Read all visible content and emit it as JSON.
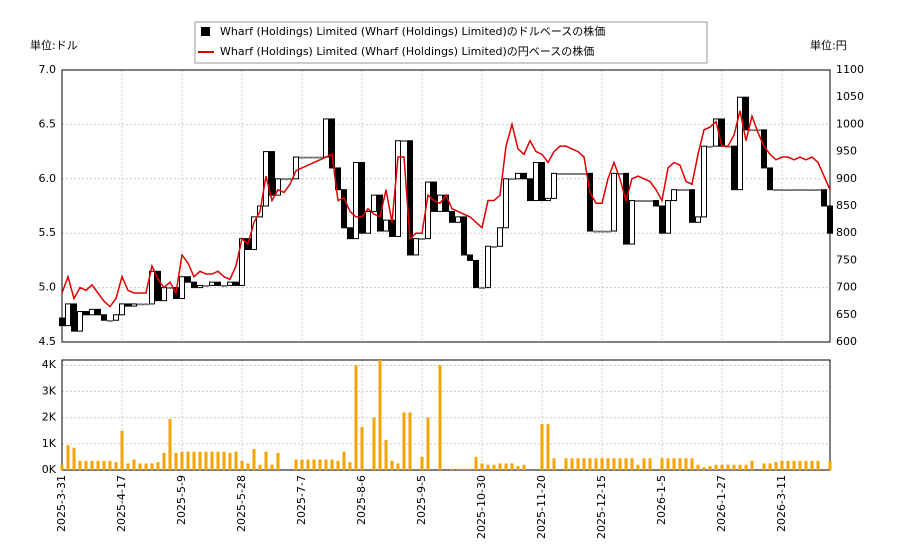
{
  "chart_data": [
    {
      "type": "candlestick",
      "unit_left": "単位:ドル",
      "unit_right": "単位:円",
      "series": [
        {
          "name": "Wharf (Holdings) Limited (Wharf (Holdings) Limited)のドルベースの株価",
          "color": "#000000",
          "open": [
            4.72,
            4.65,
            4.85,
            4.6,
            4.78,
            4.75,
            4.8,
            4.75,
            4.7,
            4.7,
            4.75,
            4.85,
            4.83,
            4.85,
            4.85,
            4.85,
            5.15,
            4.88,
            5.0,
            5.0,
            4.9,
            5.1,
            5.05,
            5.0,
            5.02,
            5.02,
            5.05,
            5.02,
            5.02,
            5.05,
            5.02,
            5.45,
            5.35,
            5.65,
            5.75,
            6.25,
            5.85,
            6.0,
            6.0,
            6.0,
            6.2,
            6.2,
            6.2,
            6.2,
            6.2,
            6.55,
            6.1,
            5.9,
            5.55,
            5.45,
            6.15,
            5.5,
            5.7,
            5.85,
            5.52,
            5.62,
            5.47,
            6.35,
            6.35,
            5.3,
            5.45,
            5.45,
            5.97,
            5.7,
            5.85,
            5.7,
            5.6,
            5.65,
            5.3,
            5.25,
            5.0,
            5.0,
            5.38,
            5.38,
            5.55,
            6.0,
            6.0,
            6.05,
            6.0,
            5.8,
            6.15,
            5.8,
            5.82,
            6.05,
            6.05,
            6.05,
            6.05,
            6.05,
            6.05,
            5.52,
            5.52,
            5.52,
            5.52,
            6.05,
            6.05,
            5.4,
            5.8,
            5.8,
            5.8,
            5.8,
            5.75,
            5.5,
            5.8,
            5.9,
            5.9,
            5.9,
            5.6,
            5.65,
            6.3,
            6.3,
            6.55,
            6.3,
            6.3,
            5.9,
            6.75,
            6.45,
            6.45,
            6.45,
            6.1,
            5.9,
            5.9,
            5.9,
            5.9,
            5.9,
            5.9,
            5.9,
            5.9,
            5.9,
            5.75
          ],
          "close": [
            4.65,
            4.85,
            4.6,
            4.78,
            4.75,
            4.8,
            4.75,
            4.7,
            4.7,
            4.75,
            4.85,
            4.83,
            4.85,
            4.85,
            4.85,
            5.15,
            4.88,
            5.0,
            5.0,
            4.9,
            5.1,
            5.05,
            5.0,
            5.02,
            5.02,
            5.05,
            5.02,
            5.02,
            5.05,
            5.02,
            5.45,
            5.35,
            5.65,
            5.75,
            6.25,
            5.85,
            6.0,
            6.0,
            6.0,
            6.2,
            6.2,
            6.2,
            6.2,
            6.2,
            6.55,
            6.1,
            5.9,
            5.55,
            5.45,
            6.15,
            5.5,
            5.7,
            5.85,
            5.52,
            5.62,
            5.47,
            6.35,
            6.35,
            5.3,
            5.45,
            5.45,
            5.97,
            5.7,
            5.85,
            5.7,
            5.6,
            5.65,
            5.3,
            5.25,
            5.0,
            5.0,
            5.38,
            5.38,
            5.55,
            6.0,
            6.0,
            6.05,
            6.0,
            5.8,
            6.15,
            5.8,
            5.82,
            6.05,
            6.05,
            6.05,
            6.05,
            6.05,
            6.05,
            5.52,
            5.52,
            5.52,
            5.52,
            6.05,
            6.05,
            5.4,
            5.8,
            5.8,
            5.8,
            5.8,
            5.75,
            5.5,
            5.8,
            5.9,
            5.9,
            5.9,
            5.6,
            5.65,
            6.3,
            6.3,
            6.55,
            6.3,
            6.3,
            5.9,
            6.75,
            6.45,
            6.45,
            6.45,
            6.1,
            5.9,
            5.9,
            5.9,
            5.9,
            5.9,
            5.9,
            5.9,
            5.9,
            5.9,
            5.75,
            5.5
          ]
        },
        {
          "name": "Wharf (Holdings) Limited (Wharf (Holdings) Limited)の円ベースの株価",
          "color": "#e00000",
          "axis": "y2",
          "values": [
            690,
            720,
            680,
            700,
            695,
            705,
            690,
            675,
            665,
            680,
            720,
            695,
            690,
            690,
            690,
            740,
            715,
            700,
            710,
            690,
            760,
            745,
            720,
            730,
            725,
            725,
            730,
            720,
            715,
            740,
            790,
            780,
            820,
            840,
            905,
            860,
            880,
            875,
            890,
            915,
            920,
            925,
            930,
            935,
            940,
            945,
            860,
            865,
            840,
            830,
            830,
            845,
            835,
            830,
            880,
            820,
            940,
            940,
            790,
            800,
            800,
            870,
            860,
            855,
            870,
            845,
            840,
            835,
            830,
            820,
            810,
            860,
            860,
            870,
            960,
            1000,
            955,
            945,
            970,
            950,
            945,
            930,
            950,
            960,
            960,
            955,
            950,
            940,
            875,
            855,
            855,
            900,
            930,
            900,
            860,
            900,
            905,
            900,
            895,
            880,
            860,
            920,
            930,
            925,
            895,
            890,
            945,
            990,
            995,
            1005,
            960,
            960,
            980,
            1025,
            970,
            1015,
            985,
            960,
            945,
            935,
            940,
            940,
            935,
            940,
            935,
            940,
            930,
            905,
            880
          ]
        }
      ],
      "ylim": [
        4.5,
        7.0
      ],
      "yticks": [
        4.5,
        {
          "value": 5.0,
          "label": "5.0"
        },
        5.5,
        {
          "value": 6.0,
          "label": "6.0"
        },
        6.5,
        {
          "value": 7.0,
          "label": "7.0"
        }
      ],
      "y2lim": [
        600,
        1100
      ],
      "y2ticks": [
        600,
        650,
        700,
        750,
        800,
        850,
        900,
        950,
        1000,
        1050,
        1100
      ],
      "grid": true
    },
    {
      "type": "bar",
      "categories": [
        "2025-3-31",
        null,
        null,
        null,
        null,
        null,
        null,
        null,
        null,
        null,
        "2025-4-17",
        null,
        null,
        null,
        null,
        null,
        null,
        null,
        null,
        null,
        "2025-5-9",
        null,
        null,
        null,
        null,
        null,
        null,
        null,
        null,
        null,
        "2025-5-28",
        null,
        null,
        null,
        null,
        null,
        null,
        null,
        null,
        null,
        "2025-7-7",
        null,
        null,
        null,
        null,
        null,
        null,
        null,
        null,
        null,
        "2025-8-6",
        null,
        null,
        null,
        null,
        null,
        null,
        null,
        null,
        null,
        "2025-9-5",
        null,
        null,
        null,
        null,
        null,
        null,
        null,
        null,
        null,
        "2025-10-30",
        null,
        null,
        null,
        null,
        null,
        null,
        null,
        null,
        null,
        "2025-11-20",
        null,
        null,
        null,
        null,
        null,
        null,
        null,
        null,
        null,
        "2025-12-15",
        null,
        null,
        null,
        null,
        null,
        null,
        null,
        null,
        null,
        "2026-1-5",
        null,
        null,
        null,
        null,
        null,
        null,
        null,
        null,
        null,
        "2026-1-27",
        null,
        null,
        null,
        null,
        null,
        null,
        null,
        null,
        null,
        "2026-3-11",
        null,
        null,
        null,
        null,
        null,
        null,
        null,
        null
      ],
      "values": [
        200,
        950,
        850,
        350,
        350,
        350,
        350,
        350,
        350,
        300,
        1500,
        250,
        400,
        250,
        250,
        250,
        300,
        650,
        1950,
        650,
        700,
        700,
        700,
        700,
        700,
        700,
        700,
        700,
        650,
        700,
        350,
        250,
        800,
        200,
        700,
        200,
        650,
        0,
        0,
        400,
        400,
        400,
        400,
        400,
        400,
        400,
        350,
        700,
        300,
        4000,
        1650,
        0,
        2000,
        4200,
        1150,
        350,
        250,
        2200,
        2200,
        0,
        500,
        2000,
        0,
        4000,
        0,
        50,
        50,
        50,
        50,
        500,
        250,
        200,
        200,
        250,
        250,
        250,
        150,
        200,
        0,
        0,
        1750,
        1750,
        450,
        0,
        450,
        450,
        450,
        450,
        450,
        450,
        450,
        450,
        450,
        450,
        450,
        450,
        200,
        450,
        450,
        0,
        450,
        450,
        450,
        450,
        450,
        450,
        200,
        100,
        150,
        200,
        200,
        200,
        200,
        200,
        200,
        350,
        0,
        250,
        250,
        300,
        350,
        350,
        350,
        350,
        350,
        350,
        350,
        0,
        350
      ],
      "color": "#f5a300",
      "ylim": [
        0,
        4200
      ],
      "yticks": [
        {
          "value": 0,
          "label": "0K"
        },
        {
          "value": 1000,
          "label": "1K"
        },
        {
          "value": 2000,
          "label": "2K"
        },
        {
          "value": 3000,
          "label": "3K"
        },
        {
          "value": 4000,
          "label": "4K"
        }
      ],
      "grid": true
    }
  ]
}
